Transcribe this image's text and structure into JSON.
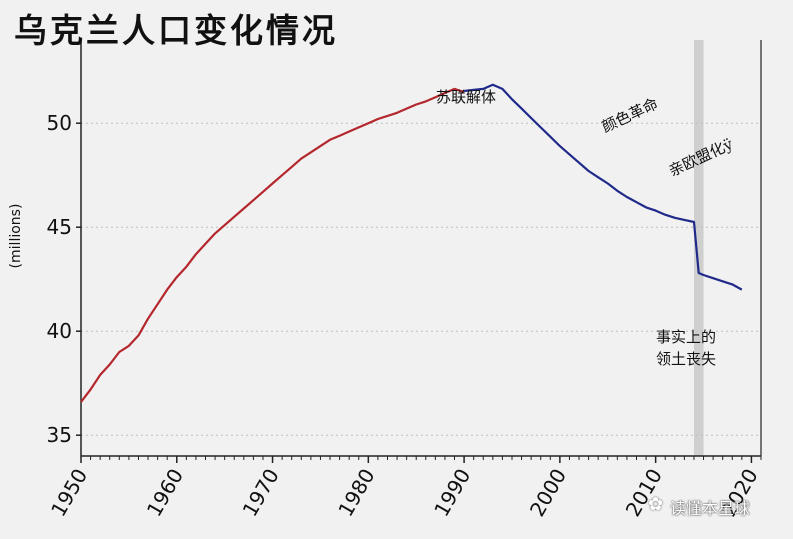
{
  "title": "乌克兰人口变化情况",
  "watermark": "读懂本星球",
  "watermark_icon": "wechat-icon",
  "colors": {
    "soviet_line": "#b3272d",
    "post_line": "#1f2a8a",
    "highlight_band": "#cfcfcf",
    "grid": "#bdbdbd",
    "background": "#f2f1f1"
  },
  "annotations": {
    "soviet_collapse": "苏联解体",
    "color_revolution": "颜色革命",
    "pro_eu": "亲欧盟化ÿ",
    "territory_loss_line1": "事实上的",
    "territory_loss_line2": "领土丧失"
  },
  "chart_data": {
    "type": "line",
    "title": "乌克兰人口变化情况",
    "xlabel": "",
    "ylabel": "(millions)",
    "xlim": [
      1950,
      2021
    ],
    "ylim": [
      34,
      54
    ],
    "xticks": [
      1950,
      1960,
      1970,
      1980,
      1990,
      2000,
      2010,
      2020
    ],
    "yticks": [
      35,
      40,
      45,
      50
    ],
    "grid": true,
    "highlight_band": [
      2014,
      2015
    ],
    "series": [
      {
        "name": "",
        "color": "#b3272d",
        "x": [
          1950,
          1951,
          1952,
          1953,
          1954,
          1955,
          1956,
          1957,
          1958,
          1959,
          1960,
          1961,
          1962,
          1963,
          1964,
          1965,
          1966,
          1967,
          1968,
          1969,
          1970,
          1971,
          1972,
          1973,
          1974,
          1975,
          1976,
          1977,
          1978,
          1979,
          1980,
          1981,
          1982,
          1983,
          1984,
          1985,
          1986,
          1987,
          1988,
          1989,
          1990
        ],
        "y": [
          36.6,
          37.2,
          37.9,
          38.4,
          39.0,
          39.3,
          39.8,
          40.6,
          41.3,
          42.0,
          42.6,
          43.1,
          43.7,
          44.2,
          44.7,
          45.1,
          45.5,
          45.9,
          46.3,
          46.7,
          47.1,
          47.5,
          47.9,
          48.3,
          48.6,
          48.9,
          49.2,
          49.4,
          49.6,
          49.8,
          50.0,
          50.2,
          50.35,
          50.5,
          50.7,
          50.9,
          51.05,
          51.25,
          51.45,
          51.65,
          51.5
        ]
      },
      {
        "name": "",
        "color": "#1f2a8a",
        "x": [
          1990,
          1991,
          1992,
          1993,
          1994,
          1995,
          1996,
          1997,
          1998,
          1999,
          2000,
          2001,
          2002,
          2003,
          2004,
          2005,
          2006,
          2007,
          2008,
          2009,
          2010,
          2011,
          2012,
          2013,
          2014,
          2014.5,
          2015,
          2016,
          2017,
          2018,
          2019
        ],
        "y": [
          51.55,
          51.6,
          51.65,
          51.85,
          51.65,
          51.15,
          50.7,
          50.25,
          49.8,
          49.35,
          48.9,
          48.5,
          48.1,
          47.7,
          47.4,
          47.1,
          46.75,
          46.45,
          46.2,
          45.95,
          45.8,
          45.6,
          45.45,
          45.35,
          45.25,
          42.8,
          42.7,
          42.55,
          42.4,
          42.25,
          42.0
        ]
      }
    ]
  }
}
